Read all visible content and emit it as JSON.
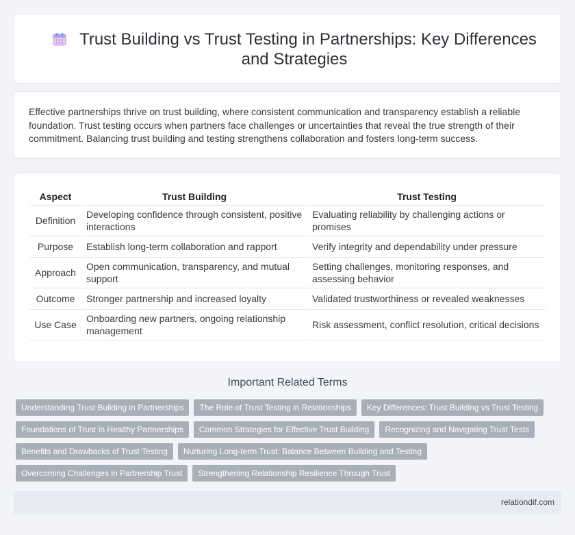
{
  "header": {
    "title": "Trust Building vs Trust Testing in Partnerships: Key Differences and Strategies",
    "icon": "calendar-icon"
  },
  "intro": {
    "text": "Effective partnerships thrive on trust building, where consistent communication and transparency establish a reliable foundation. Trust testing occurs when partners face challenges or uncertainties that reveal the true strength of their commitment. Balancing trust building and testing strengthens collaboration and fosters long-term success."
  },
  "table": {
    "headers": [
      "Aspect",
      "Trust Building",
      "Trust Testing"
    ],
    "rows": [
      [
        "Definition",
        "Developing confidence through consistent, positive interactions",
        "Evaluating reliability by challenging actions or promises"
      ],
      [
        "Purpose",
        "Establish long-term collaboration and rapport",
        "Verify integrity and dependability under pressure"
      ],
      [
        "Approach",
        "Open communication, transparency, and mutual support",
        "Setting challenges, monitoring responses, and assessing behavior"
      ],
      [
        "Outcome",
        "Stronger partnership and increased loyalty",
        "Validated trustworthiness or revealed weaknesses"
      ],
      [
        "Use Case",
        "Onboarding new partners, ongoing relationship management",
        "Risk assessment, conflict resolution, critical decisions"
      ]
    ]
  },
  "related": {
    "title": "Important Related Terms",
    "tags": [
      "Understanding Trust Building in Partnerships",
      "The Role of Trust Testing in Relationships",
      "Key Differences: Trust Building vs Trust Testing",
      "Foundations of Trust in Healthy Partnerships",
      "Common Strategies for Effective Trust Building",
      "Recognizing and Navigating Trust Tests",
      "Benefits and Drawbacks of Trust Testing",
      "Nurturing Long-term Trust: Balance Between Building and Testing",
      "Overcoming Challenges in Partnership Trust",
      "Strengthening Relationship Resilience Through Trust"
    ]
  },
  "footer": {
    "text": "relationdif.com"
  },
  "colors": {
    "tag_bg": "#a9afb9",
    "page_bg": "#f3f4f8",
    "footer_bg": "#e8ebf4"
  }
}
